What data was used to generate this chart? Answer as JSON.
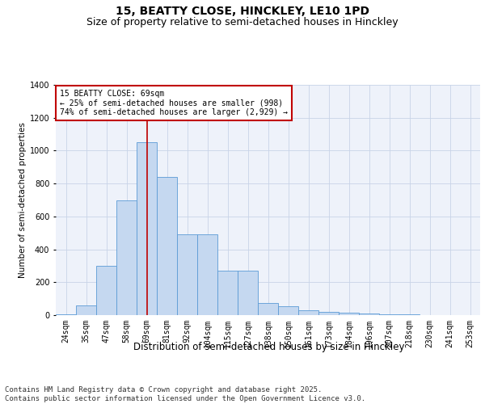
{
  "title1": "15, BEATTY CLOSE, HINCKLEY, LE10 1PD",
  "title2": "Size of property relative to semi-detached houses in Hinckley",
  "xlabel": "Distribution of semi-detached houses by size in Hinckley",
  "ylabel": "Number of semi-detached properties",
  "categories": [
    "24sqm",
    "35sqm",
    "47sqm",
    "58sqm",
    "69sqm",
    "81sqm",
    "92sqm",
    "104sqm",
    "115sqm",
    "127sqm",
    "138sqm",
    "150sqm",
    "161sqm",
    "173sqm",
    "184sqm",
    "196sqm",
    "207sqm",
    "218sqm",
    "230sqm",
    "241sqm",
    "253sqm"
  ],
  "values": [
    5,
    60,
    300,
    700,
    1050,
    840,
    490,
    490,
    270,
    270,
    75,
    55,
    30,
    20,
    15,
    10,
    5,
    3,
    0,
    0,
    0
  ],
  "bar_color": "#c5d8f0",
  "bar_edge_color": "#5b9bd5",
  "vline_index": 4,
  "vline_color": "#c00000",
  "annotation_text": "15 BEATTY CLOSE: 69sqm\n← 25% of semi-detached houses are smaller (998)\n74% of semi-detached houses are larger (2,929) →",
  "annotation_box_color": "#c00000",
  "ylim": [
    0,
    1400
  ],
  "background_color": "#eef2fa",
  "footer_text": "Contains HM Land Registry data © Crown copyright and database right 2025.\nContains public sector information licensed under the Open Government Licence v3.0.",
  "title1_fontsize": 10,
  "title2_fontsize": 9,
  "xlabel_fontsize": 8.5,
  "ylabel_fontsize": 7.5,
  "tick_fontsize": 7,
  "annotation_fontsize": 7,
  "footer_fontsize": 6.5
}
